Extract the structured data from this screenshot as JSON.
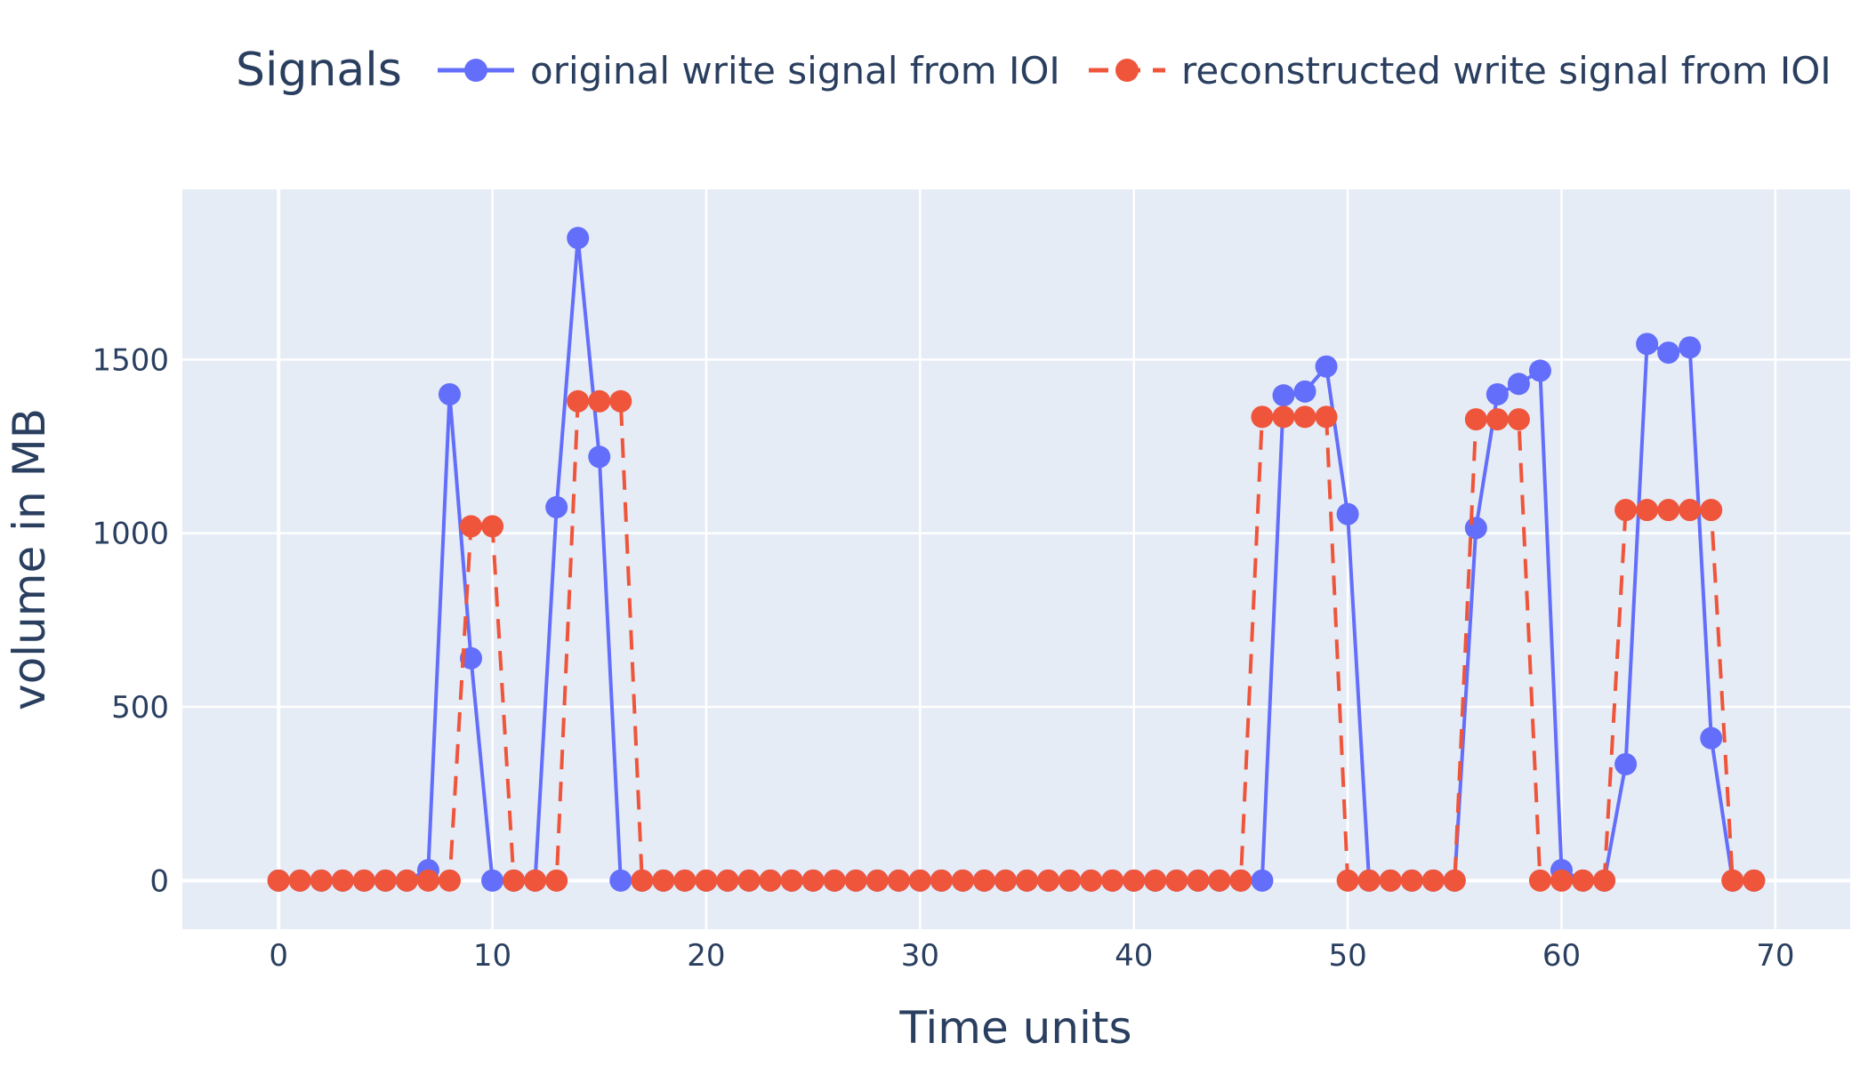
{
  "legend": {
    "title": "Signals",
    "series_labels": [
      "original write signal from IOI",
      "reconstructed write signal from IOI"
    ]
  },
  "chart_data": {
    "type": "line",
    "xlabel": "Time units",
    "ylabel": "volume in MB",
    "xlim": [
      -4.5,
      73.5
    ],
    "ylim": [
      -140,
      1990
    ],
    "xticks": [
      0,
      10,
      20,
      30,
      40,
      50,
      60,
      70
    ],
    "yticks": [
      0,
      500,
      1000,
      1500
    ],
    "grid": true,
    "legend_position": "top",
    "plot_background": "#e5ecf6",
    "series": [
      {
        "name": "original write signal from IOI",
        "color": "#636efa",
        "line_style": "solid",
        "x": [
          0,
          1,
          2,
          3,
          4,
          5,
          6,
          7,
          8,
          9,
          10,
          11,
          12,
          13,
          14,
          15,
          16,
          17,
          18,
          19,
          20,
          21,
          22,
          23,
          24,
          25,
          26,
          27,
          28,
          29,
          30,
          31,
          32,
          33,
          34,
          35,
          36,
          37,
          38,
          39,
          40,
          41,
          42,
          43,
          44,
          45,
          46,
          47,
          48,
          49,
          50,
          51,
          52,
          53,
          54,
          55,
          56,
          57,
          58,
          59,
          60,
          61,
          62,
          63,
          64,
          65,
          66,
          67,
          68,
          69
        ],
        "y": [
          0,
          0,
          0,
          0,
          0,
          0,
          0,
          30,
          1400,
          640,
          0,
          0,
          0,
          1075,
          1850,
          1220,
          0,
          0,
          0,
          0,
          0,
          0,
          0,
          0,
          0,
          0,
          0,
          0,
          0,
          0,
          0,
          0,
          0,
          0,
          0,
          0,
          0,
          0,
          0,
          0,
          0,
          0,
          0,
          0,
          0,
          0,
          0,
          1397,
          1408,
          1480,
          1055,
          0,
          0,
          0,
          0,
          0,
          1015,
          1400,
          1430,
          1468,
          30,
          0,
          0,
          335,
          1545,
          1520,
          1535,
          410,
          0,
          0
        ]
      },
      {
        "name": "reconstructed write signal from IOI",
        "color": "#ef553b",
        "line_style": "dash",
        "x": [
          0,
          1,
          2,
          3,
          4,
          5,
          6,
          7,
          8,
          9,
          10,
          11,
          12,
          13,
          14,
          15,
          16,
          17,
          18,
          19,
          20,
          21,
          22,
          23,
          24,
          25,
          26,
          27,
          28,
          29,
          30,
          31,
          32,
          33,
          34,
          35,
          36,
          37,
          38,
          39,
          40,
          41,
          42,
          43,
          44,
          45,
          46,
          47,
          48,
          49,
          50,
          51,
          52,
          53,
          54,
          55,
          56,
          57,
          58,
          59,
          60,
          61,
          62,
          63,
          64,
          65,
          66,
          67,
          68,
          69
        ],
        "y": [
          0,
          0,
          0,
          0,
          0,
          0,
          0,
          0,
          0,
          1020,
          1020,
          0,
          0,
          0,
          1380,
          1380,
          1380,
          0,
          0,
          0,
          0,
          0,
          0,
          0,
          0,
          0,
          0,
          0,
          0,
          0,
          0,
          0,
          0,
          0,
          0,
          0,
          0,
          0,
          0,
          0,
          0,
          0,
          0,
          0,
          0,
          0,
          1335,
          1335,
          1335,
          1335,
          0,
          0,
          0,
          0,
          0,
          0,
          1328,
          1328,
          1328,
          0,
          0,
          0,
          0,
          1067,
          1067,
          1067,
          1067,
          1067,
          0,
          0
        ]
      }
    ]
  }
}
